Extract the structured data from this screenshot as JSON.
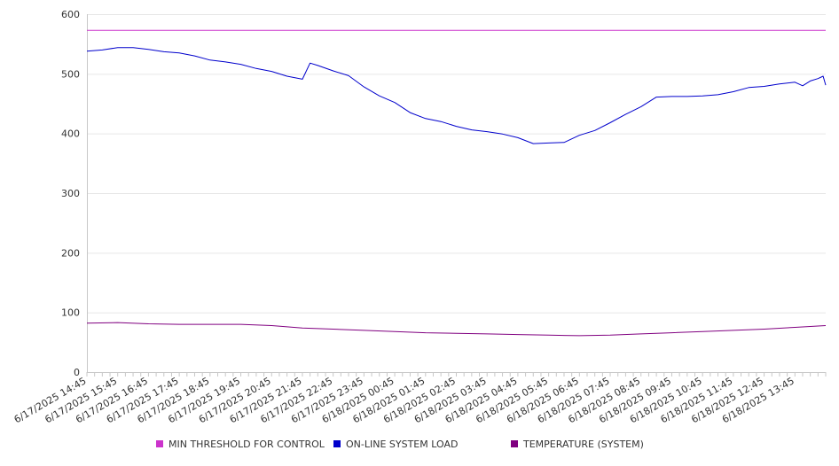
{
  "chart_data": {
    "type": "line",
    "title": "",
    "xlabel": "",
    "ylabel": "",
    "ylim": [
      0,
      600
    ],
    "yticks": [
      0,
      100,
      200,
      300,
      400,
      500,
      600
    ],
    "x_range": [
      "6/17/2025 14:45",
      "6/18/2025 14:45"
    ],
    "x_tick_labels": [
      "6/17/2025 14:45",
      "6/17/2025 15:45",
      "6/17/2025 16:45",
      "6/17/2025 17:45",
      "6/17/2025 18:45",
      "6/17/2025 19:45",
      "6/17/2025 20:45",
      "6/17/2025 21:45",
      "6/17/2025 22:45",
      "6/17/2025 23:45",
      "6/18/2025 00:45",
      "6/18/2025 01:45",
      "6/18/2025 02:45",
      "6/18/2025 03:45",
      "6/18/2025 04:45",
      "6/18/2025 05:45",
      "6/18/2025 06:45",
      "6/18/2025 07:45",
      "6/18/2025 08:45",
      "6/18/2025 09:45",
      "6/18/2025 10:45",
      "6/18/2025 11:45",
      "6/18/2025 12:45",
      "6/18/2025 13:45"
    ],
    "grid": true,
    "legend_position": "bottom",
    "series": [
      {
        "name": "MIN THRESHOLD FOR CONTROL",
        "color": "#cc33cc",
        "points": [
          [
            "6/17/2025 14:45",
            573
          ],
          [
            "6/18/2025 14:45",
            573
          ]
        ]
      },
      {
        "name": "ON-LINE SYSTEM LOAD",
        "color": "#0000cc",
        "points": [
          [
            "6/17/2025 14:45",
            538
          ],
          [
            "6/17/2025 15:15",
            540
          ],
          [
            "6/17/2025 15:45",
            544
          ],
          [
            "6/17/2025 16:15",
            544
          ],
          [
            "6/17/2025 16:45",
            541
          ],
          [
            "6/17/2025 17:15",
            537
          ],
          [
            "6/17/2025 17:45",
            535
          ],
          [
            "6/17/2025 18:15",
            530
          ],
          [
            "6/17/2025 18:45",
            523
          ],
          [
            "6/17/2025 19:15",
            520
          ],
          [
            "6/17/2025 19:45",
            516
          ],
          [
            "6/17/2025 20:15",
            509
          ],
          [
            "6/17/2025 20:45",
            504
          ],
          [
            "6/17/2025 21:15",
            496
          ],
          [
            "6/17/2025 21:45",
            491
          ],
          [
            "6/17/2025 22:00",
            518
          ],
          [
            "6/17/2025 22:15",
            514
          ],
          [
            "6/17/2025 22:45",
            505
          ],
          [
            "6/17/2025 23:15",
            497
          ],
          [
            "6/17/2025 23:45",
            478
          ],
          [
            "6/18/2025 00:15",
            463
          ],
          [
            "6/18/2025 00:45",
            452
          ],
          [
            "6/18/2025 01:15",
            435
          ],
          [
            "6/18/2025 01:45",
            425
          ],
          [
            "6/18/2025 02:15",
            420
          ],
          [
            "6/18/2025 02:45",
            412
          ],
          [
            "6/18/2025 03:15",
            406
          ],
          [
            "6/18/2025 03:45",
            403
          ],
          [
            "6/18/2025 04:15",
            399
          ],
          [
            "6/18/2025 04:45",
            393
          ],
          [
            "6/18/2025 05:15",
            383
          ],
          [
            "6/18/2025 05:45",
            384
          ],
          [
            "6/18/2025 06:15",
            385
          ],
          [
            "6/18/2025 06:45",
            397
          ],
          [
            "6/18/2025 07:15",
            405
          ],
          [
            "6/18/2025 07:45",
            418
          ],
          [
            "6/18/2025 08:15",
            432
          ],
          [
            "6/18/2025 08:45",
            445
          ],
          [
            "6/18/2025 09:15",
            461
          ],
          [
            "6/18/2025 09:45",
            462
          ],
          [
            "6/18/2025 10:15",
            462
          ],
          [
            "6/18/2025 10:45",
            463
          ],
          [
            "6/18/2025 11:15",
            465
          ],
          [
            "6/18/2025 11:45",
            470
          ],
          [
            "6/18/2025 12:15",
            477
          ],
          [
            "6/18/2025 12:45",
            479
          ],
          [
            "6/18/2025 13:15",
            483
          ],
          [
            "6/18/2025 13:45",
            486
          ],
          [
            "6/18/2025 14:00",
            480
          ],
          [
            "6/18/2025 14:15",
            488
          ],
          [
            "6/18/2025 14:30",
            492
          ],
          [
            "6/18/2025 14:40",
            496
          ],
          [
            "6/18/2025 14:45",
            481
          ]
        ]
      },
      {
        "name": "TEMPERATURE (SYSTEM)",
        "color": "#800080",
        "points": [
          [
            "6/17/2025 14:45",
            82
          ],
          [
            "6/17/2025 15:45",
            83
          ],
          [
            "6/17/2025 16:45",
            81
          ],
          [
            "6/17/2025 17:45",
            80
          ],
          [
            "6/17/2025 18:45",
            80
          ],
          [
            "6/17/2025 19:45",
            80
          ],
          [
            "6/17/2025 20:45",
            78
          ],
          [
            "6/17/2025 21:45",
            74
          ],
          [
            "6/17/2025 22:45",
            72
          ],
          [
            "6/17/2025 23:45",
            70
          ],
          [
            "6/18/2025 00:45",
            68
          ],
          [
            "6/18/2025 01:45",
            66
          ],
          [
            "6/18/2025 02:45",
            65
          ],
          [
            "6/18/2025 03:45",
            64
          ],
          [
            "6/18/2025 04:45",
            63
          ],
          [
            "6/18/2025 05:45",
            62
          ],
          [
            "6/18/2025 06:45",
            61
          ],
          [
            "6/18/2025 07:45",
            62
          ],
          [
            "6/18/2025 08:45",
            64
          ],
          [
            "6/18/2025 09:45",
            66
          ],
          [
            "6/18/2025 10:45",
            68
          ],
          [
            "6/18/2025 11:45",
            70
          ],
          [
            "6/18/2025 12:45",
            72
          ],
          [
            "6/18/2025 13:45",
            75
          ],
          [
            "6/18/2025 14:45",
            78
          ]
        ]
      }
    ]
  }
}
